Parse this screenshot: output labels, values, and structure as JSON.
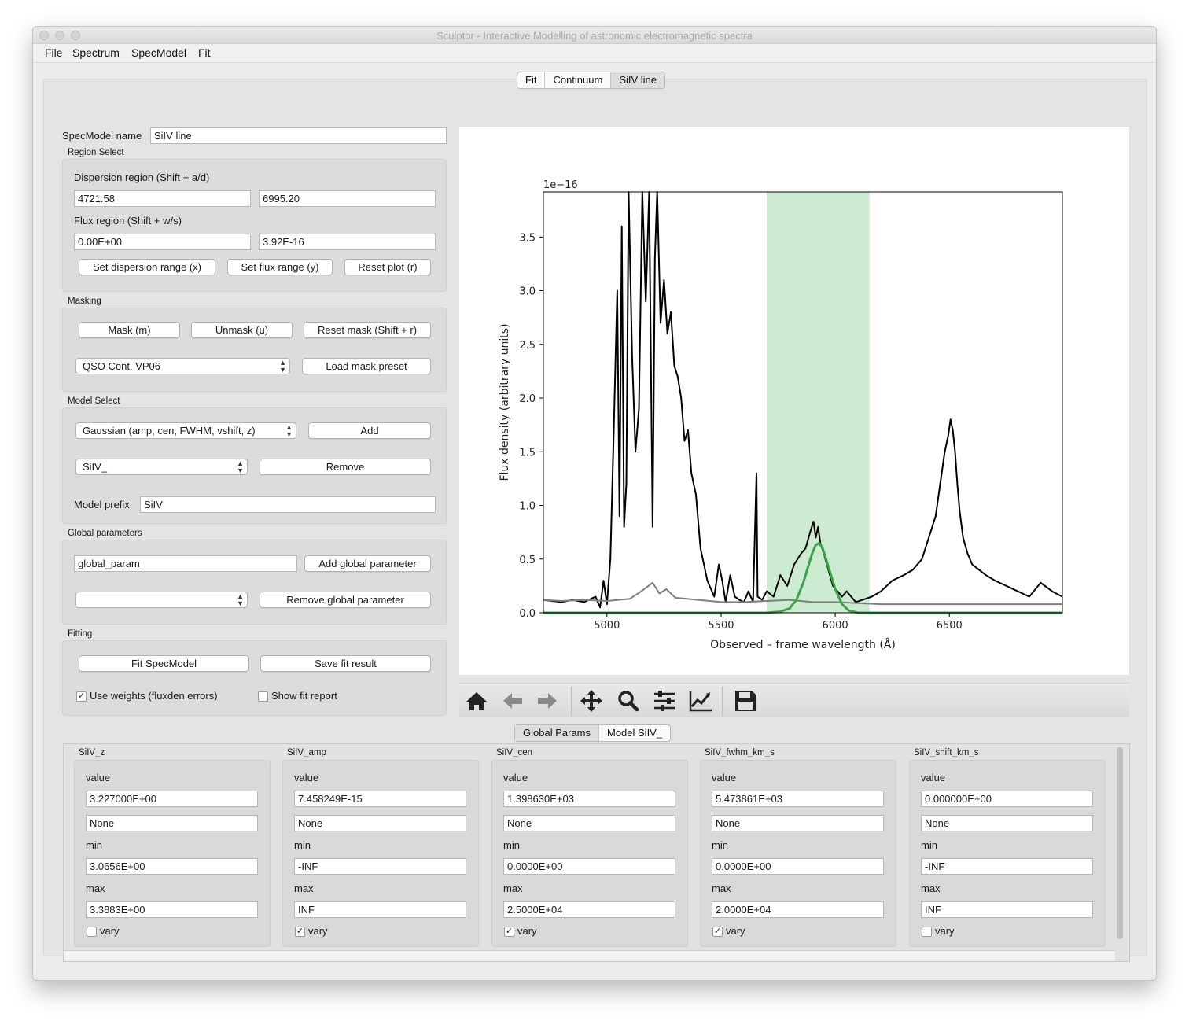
{
  "window": {
    "title": "Sculptor - Interactive Modelling of astronomic electromagnetic spectra"
  },
  "menu": [
    "File",
    "Spectrum",
    "SpecModel",
    "Fit"
  ],
  "top_tabs": [
    "Fit",
    "Continuum",
    "SiIV line"
  ],
  "specmodel": {
    "name_label": "SpecModel name",
    "name_value": "SiIV line"
  },
  "region": {
    "title": "Region Select",
    "dispersion_label": "Dispersion region (Shift + a/d)",
    "disp_min": "4721.58",
    "disp_max": "6995.20",
    "flux_label": "Flux region (Shift + w/s)",
    "flux_min": "0.00E+00",
    "flux_max": "3.92E-16",
    "btn_disp": "Set dispersion range (x)",
    "btn_flux": "Set flux range (y)",
    "btn_reset": "Reset plot (r)"
  },
  "masking": {
    "title": "Masking",
    "btn_mask": "Mask (m)",
    "btn_unmask": "Unmask (u)",
    "btn_reset": "Reset mask (Shift + r)",
    "preset_selected": "QSO Cont. VP06",
    "btn_load": "Load mask preset"
  },
  "model_select": {
    "title": "Model Select",
    "model_selected": "Gaussian (amp, cen, FWHM, vshift, z)",
    "btn_add": "Add",
    "component_selected": "SiIV_",
    "btn_remove": "Remove",
    "prefix_label": "Model prefix",
    "prefix_value": "SiIV"
  },
  "global_params": {
    "title": "Global parameters",
    "input_value": "global_param",
    "btn_add": "Add global parameter",
    "selected": "",
    "btn_remove": "Remove global parameter"
  },
  "fitting": {
    "title": "Fitting",
    "btn_fit": "Fit SpecModel",
    "btn_save": "Save fit result",
    "use_weights_label": "Use weights (fluxden errors)",
    "use_weights_checked": true,
    "show_report_label": "Show fit report",
    "show_report_checked": false
  },
  "toolbar_icons": [
    "home-icon",
    "back-arrow-icon",
    "forward-arrow-icon",
    "pan-move-icon",
    "zoom-magnifier-icon",
    "configure-subplots-icon",
    "edit-axis-icon",
    "save-floppy-icon"
  ],
  "bottom_tabs": [
    "Global Params",
    "Model SiIV_"
  ],
  "param_panels": [
    {
      "name": "SiIV_z",
      "value_label": "value",
      "value": "3.227000E+00",
      "expr": "None",
      "min_label": "min",
      "min": "3.0656E+00",
      "max_label": "max",
      "max": "3.3883E+00",
      "vary_label": "vary",
      "vary": false
    },
    {
      "name": "SiIV_amp",
      "value_label": "value",
      "value": "7.458249E-15",
      "expr": "None",
      "min_label": "min",
      "min": "-INF",
      "max_label": "max",
      "max": "INF",
      "vary_label": "vary",
      "vary": true
    },
    {
      "name": "SiIV_cen",
      "value_label": "value",
      "value": "1.398630E+03",
      "expr": "None",
      "min_label": "min",
      "min": "0.0000E+00",
      "max_label": "max",
      "max": "2.5000E+04",
      "vary_label": "vary",
      "vary": true
    },
    {
      "name": "SiIV_fwhm_km_s",
      "value_label": "value",
      "value": "5.473861E+03",
      "expr": "None",
      "min_label": "min",
      "min": "0.0000E+00",
      "max_label": "max",
      "max": "2.0000E+04",
      "vary_label": "vary",
      "vary": true
    },
    {
      "name": "SiIV_shift_km_s",
      "value_label": "value",
      "value": "0.000000E+00",
      "expr": "None",
      "min_label": "min",
      "min": "-INF",
      "max_label": "max",
      "max": "INF",
      "vary_label": "vary",
      "vary": false
    }
  ],
  "chart_data": {
    "type": "line",
    "title": "",
    "xlabel": "Observed – frame wavelength (Å)",
    "ylabel": "Flux density (arbitrary units)",
    "y_offset_label": "1e−16",
    "xlim": [
      4721.58,
      6995.2
    ],
    "ylim": [
      0.0,
      3.92
    ],
    "x_ticks": [
      5000,
      5500,
      6000,
      6500
    ],
    "y_ticks": [
      0.0,
      0.5,
      1.0,
      1.5,
      2.0,
      2.5,
      3.0,
      3.5
    ],
    "y_tick_labels": [
      "0.0",
      "0.5",
      "1.0",
      "1.5",
      "2.0",
      "2.5",
      "3.0",
      "3.5"
    ],
    "highlight_region": {
      "x": [
        5700,
        6150
      ],
      "color": "#cdebd0"
    },
    "series": [
      {
        "color": "#000000",
        "x": [
          4722,
          4800,
          4850,
          4900,
          4950,
          4970,
          4985,
          5000,
          5015,
          5030,
          5045,
          5055,
          5065,
          5075,
          5085,
          5095,
          5110,
          5125,
          5140,
          5155,
          5170,
          5185,
          5200,
          5210,
          5220,
          5235,
          5250,
          5265,
          5280,
          5295,
          5310,
          5325,
          5340,
          5355,
          5370,
          5390,
          5410,
          5440,
          5470,
          5490,
          5505,
          5520,
          5540,
          5560,
          5580,
          5600,
          5620,
          5640,
          5655,
          5660,
          5680,
          5700,
          5730,
          5760,
          5790,
          5820,
          5850,
          5870,
          5890,
          5905,
          5915,
          5925,
          5935,
          5950,
          5970,
          5990,
          6010,
          6030,
          6050,
          6070,
          6090,
          6120,
          6160,
          6200,
          6250,
          6300,
          6340,
          6380,
          6410,
          6440,
          6460,
          6480,
          6495,
          6505,
          6515,
          6525,
          6535,
          6545,
          6560,
          6580,
          6600,
          6630,
          6660,
          6700,
          6750,
          6800,
          6850,
          6900,
          6950,
          6995
        ],
        "y": [
          0.12,
          0.1,
          0.12,
          0.1,
          0.15,
          0.05,
          0.3,
          0.08,
          0.5,
          1.7,
          3.0,
          0.9,
          3.6,
          0.8,
          1.2,
          3.92,
          2.4,
          1.5,
          1.9,
          3.92,
          2.9,
          3.92,
          0.8,
          3.3,
          3.92,
          2.7,
          3.1,
          2.6,
          2.8,
          2.3,
          2.2,
          2.0,
          1.6,
          1.7,
          1.3,
          1.1,
          0.6,
          0.3,
          0.15,
          0.45,
          0.3,
          0.1,
          0.35,
          0.15,
          0.12,
          0.1,
          0.2,
          0.1,
          1.3,
          0.15,
          0.12,
          0.2,
          0.15,
          0.35,
          0.25,
          0.45,
          0.55,
          0.6,
          0.75,
          0.85,
          0.7,
          0.8,
          0.65,
          0.55,
          0.4,
          0.25,
          0.2,
          0.15,
          0.2,
          0.15,
          0.1,
          0.12,
          0.15,
          0.2,
          0.3,
          0.35,
          0.4,
          0.5,
          0.7,
          0.9,
          1.2,
          1.5,
          1.65,
          1.8,
          1.7,
          1.5,
          1.2,
          0.95,
          0.7,
          0.55,
          0.45,
          0.4,
          0.35,
          0.3,
          0.25,
          0.2,
          0.15,
          0.28,
          0.2,
          0.15
        ]
      },
      {
        "color": "#7f7f7f",
        "x": [
          4722,
          4800,
          4900,
          5000,
          5050,
          5100,
          5150,
          5200,
          5230,
          5260,
          5300,
          5350,
          5400,
          5500,
          5600,
          5700,
          5800,
          5900,
          6000,
          6100,
          6200,
          6300,
          6400,
          6500,
          6600,
          6700,
          6800,
          6900,
          6995
        ],
        "y": [
          0.12,
          0.11,
          0.12,
          0.11,
          0.12,
          0.13,
          0.2,
          0.28,
          0.18,
          0.22,
          0.14,
          0.13,
          0.12,
          0.1,
          0.1,
          0.11,
          0.12,
          0.1,
          0.1,
          0.09,
          0.08,
          0.08,
          0.08,
          0.08,
          0.08,
          0.08,
          0.08,
          0.08,
          0.08
        ]
      },
      {
        "color": "#3aa24a",
        "x": [
          4722,
          5700,
          5760,
          5800,
          5830,
          5860,
          5880,
          5900,
          5915,
          5930,
          5945,
          5960,
          5980,
          6000,
          6030,
          6060,
          6100,
          6995
        ],
        "y": [
          0.0,
          0.0,
          0.01,
          0.04,
          0.12,
          0.28,
          0.42,
          0.56,
          0.63,
          0.65,
          0.6,
          0.5,
          0.36,
          0.22,
          0.08,
          0.02,
          0.0,
          0.0
        ]
      }
    ]
  }
}
